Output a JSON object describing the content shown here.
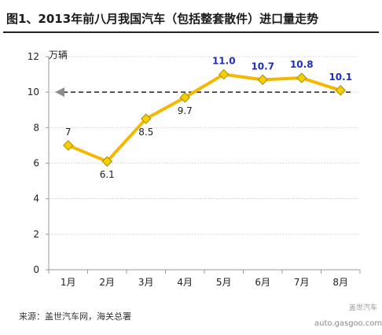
{
  "title": "图1、2013年前八月我国汽车（包括整套散件）进口量走势",
  "source": "来源：盖世汽车网，海关总署",
  "watermark": {
    "brand": "盖世汽车",
    "url": "auto.gasgoo.com"
  },
  "colors": {
    "line": "#f5b800",
    "marker": "#f5d000",
    "marker_edge": "#a88a00",
    "highlight_label": "#1f2fb8",
    "label": "#222222",
    "reference_line": "#333333",
    "grid": "#cfcfcf"
  },
  "chart_data": {
    "type": "line",
    "title": "图1、2013年前八月我国汽车（包括整套散件）进口量走势",
    "unit_label": "万辆",
    "categories": [
      "1月",
      "2月",
      "3月",
      "4月",
      "5月",
      "6月",
      "7月",
      "8月"
    ],
    "series": [
      {
        "values": [
          7,
          6.1,
          8.5,
          9.7,
          11.0,
          10.7,
          10.8,
          10.1
        ],
        "labels": [
          "7",
          "6.1",
          "8.5",
          "9.7",
          "11.0",
          "10.7",
          "10.8",
          "10.1"
        ],
        "highlighted": [
          false,
          false,
          false,
          false,
          true,
          true,
          true,
          true
        ]
      }
    ],
    "reference_line": {
      "value": 10,
      "style": "dashed",
      "arrow": "left"
    },
    "yticks": [
      0,
      2,
      4,
      6,
      8,
      10,
      12
    ],
    "ylim": [
      0,
      12
    ],
    "grid": true,
    "xlabel": "",
    "ylabel": ""
  }
}
